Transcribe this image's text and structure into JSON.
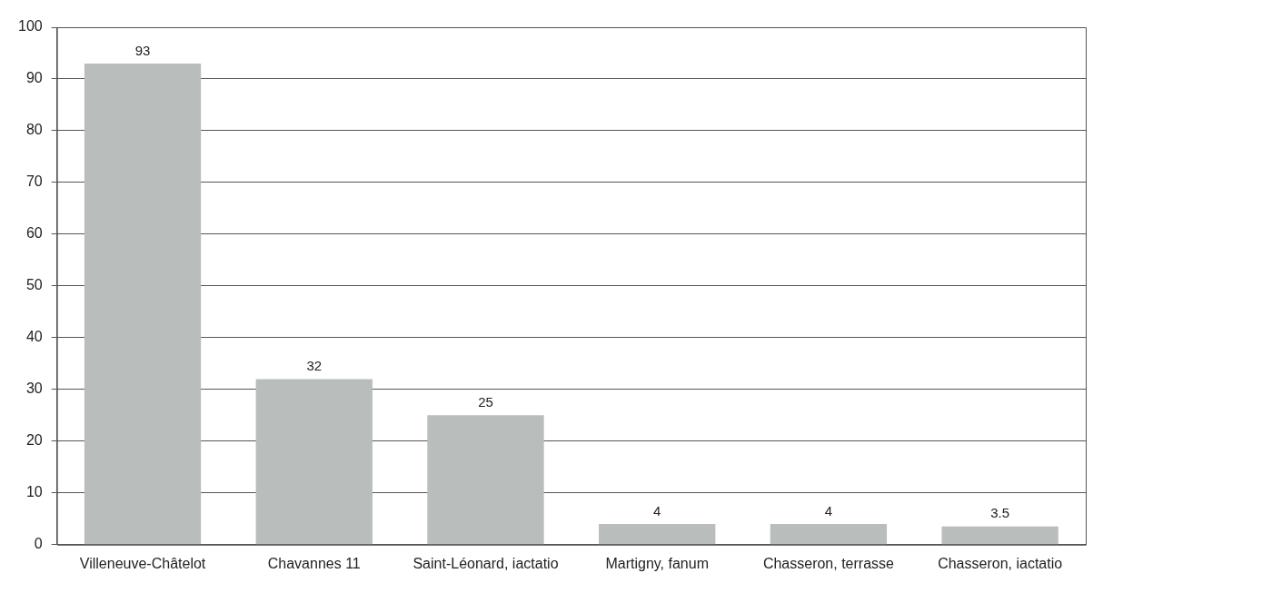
{
  "chart_data": {
    "type": "bar",
    "categories": [
      "Villeneuve-Châtelot",
      "Chavannes 11",
      "Saint-Léonard, iactatio",
      "Martigny, fanum",
      "Chasseron, terrasse",
      "Chasseron, iactatio"
    ],
    "values": [
      93,
      32,
      25,
      4,
      4,
      3.5
    ],
    "color": "#b9bdbc",
    "ylim": [
      0,
      100
    ],
    "yticks": [
      0,
      10,
      20,
      30,
      40,
      50,
      60,
      70,
      80,
      90,
      100
    ],
    "grid": "y",
    "data_labels": true
  }
}
